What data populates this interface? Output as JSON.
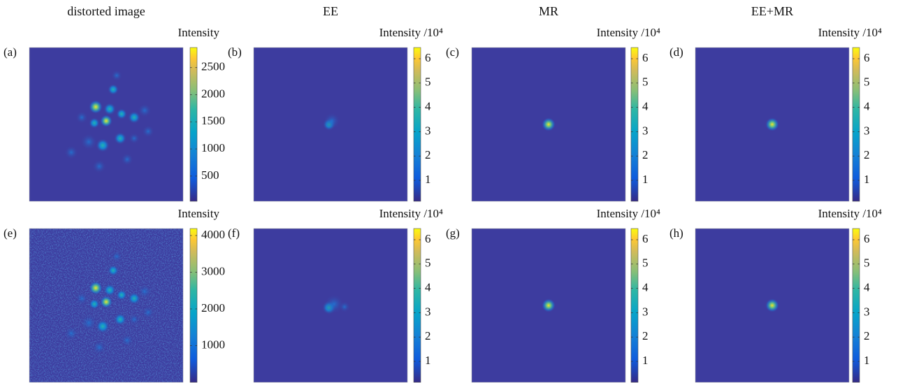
{
  "chart_data": [
    {
      "type": "heatmap",
      "title": "distorted image",
      "panel_label": "(a)",
      "colorbar_label": "Intensity",
      "colormap": "parula",
      "clim": [
        35,
        2870
      ],
      "colorbar_ticks": [
        500,
        1000,
        1500,
        2000,
        2500
      ]
    },
    {
      "type": "heatmap",
      "title": "EE",
      "panel_label": "(b)",
      "colorbar_label": "Intensity /10⁴",
      "colormap": "parula",
      "clim": [
        0.14,
        6.46
      ],
      "colorbar_ticks": [
        1,
        2,
        3,
        4,
        5,
        6
      ]
    },
    {
      "type": "heatmap",
      "title": "MR",
      "panel_label": "(c)",
      "colorbar_label": "Intensity /10⁴",
      "colormap": "parula",
      "clim": [
        0.14,
        6.46
      ],
      "colorbar_ticks": [
        1,
        2,
        3,
        4,
        5,
        6
      ]
    },
    {
      "type": "heatmap",
      "title": "EE+MR",
      "panel_label": "(d)",
      "colorbar_label": "Intensity /10⁴",
      "colormap": "parula",
      "clim": [
        0.14,
        6.46
      ],
      "colorbar_ticks": [
        1,
        2,
        3,
        4,
        5,
        6
      ]
    },
    {
      "type": "heatmap",
      "panel_label": "(e)",
      "colorbar_label": "Intensity",
      "colormap": "parula",
      "clim": [
        0,
        4190
      ],
      "colorbar_ticks": [
        1000,
        2000,
        3000,
        4000
      ]
    },
    {
      "type": "heatmap",
      "panel_label": "(f)",
      "colorbar_label": "Intensity /10⁴",
      "colormap": "parula",
      "clim": [
        0.14,
        6.46
      ],
      "colorbar_ticks": [
        1,
        2,
        3,
        4,
        5,
        6
      ]
    },
    {
      "type": "heatmap",
      "panel_label": "(g)",
      "colorbar_label": "Intensity /10⁴",
      "colormap": "parula",
      "clim": [
        0.14,
        6.46
      ],
      "colorbar_ticks": [
        1,
        2,
        3,
        4,
        5,
        6
      ]
    },
    {
      "type": "heatmap",
      "panel_label": "(h)",
      "colorbar_label": "Intensity /10⁴",
      "colormap": "parula",
      "clim": [
        0.14,
        6.46
      ],
      "colorbar_ticks": [
        1,
        2,
        3,
        4,
        5,
        6
      ]
    }
  ]
}
